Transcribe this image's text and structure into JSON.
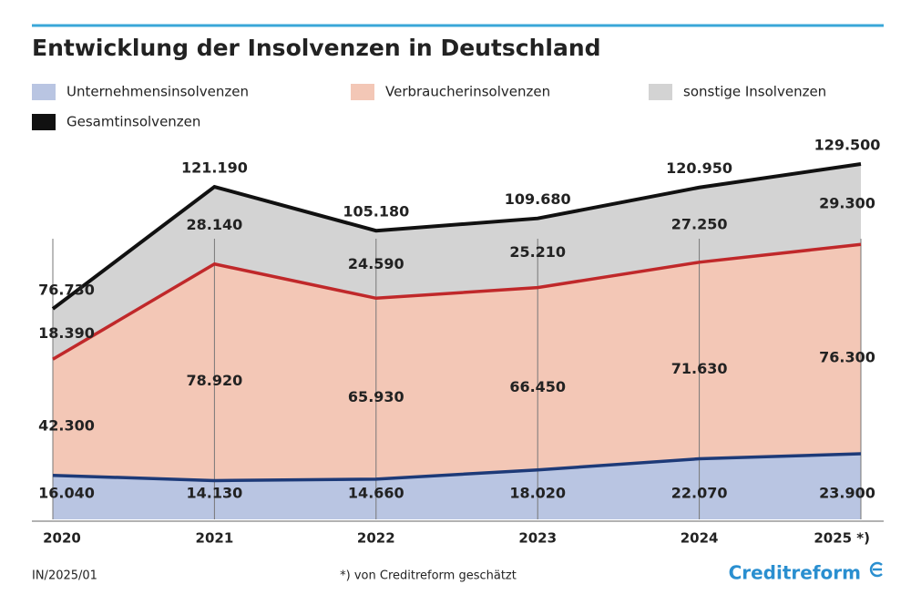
{
  "chart_data": {
    "type": "stacked-area",
    "title": "Entwicklung der Insolvenzen in Deutschland",
    "categories": [
      "2020",
      "2021",
      "2022",
      "2023",
      "2024",
      "2025 *)"
    ],
    "series": [
      {
        "name": "Unternehmensinsolvenzen",
        "color": "#b9c5e2",
        "line_color": "#1d3a78",
        "values": [
          16040,
          14130,
          14660,
          18020,
          22070,
          23900
        ],
        "value_labels": [
          "16.040",
          "14.130",
          "14.660",
          "18.020",
          "22.070",
          "23.900"
        ]
      },
      {
        "name": "Verbraucherinsolvenzen",
        "color": "#f3c7b6",
        "line_color": "#c0282a",
        "values": [
          42300,
          78920,
          65930,
          66450,
          71630,
          76300
        ],
        "value_labels": [
          "42.300",
          "78.920",
          "65.930",
          "66.450",
          "71.630",
          "76.300"
        ]
      },
      {
        "name": "sonstige Insolvenzen",
        "color": "#d3d3d3",
        "values": [
          18390,
          28140,
          24590,
          25210,
          27250,
          29300
        ],
        "value_labels": [
          "18.390",
          "28.140",
          "24.590",
          "25.210",
          "27.250",
          "29.300"
        ]
      },
      {
        "name": "Gesamtinsolvenzen",
        "color": "#111111",
        "type": "line",
        "values": [
          76730,
          121190,
          105180,
          109680,
          120950,
          129500
        ],
        "value_labels": [
          "76.730",
          "121.190",
          "105.180",
          "109.680",
          "120.950",
          "129.500"
        ]
      }
    ],
    "source": "IN/2025/01",
    "note": "*) von Creditreform geschätzt",
    "brand": "Creditreform"
  }
}
